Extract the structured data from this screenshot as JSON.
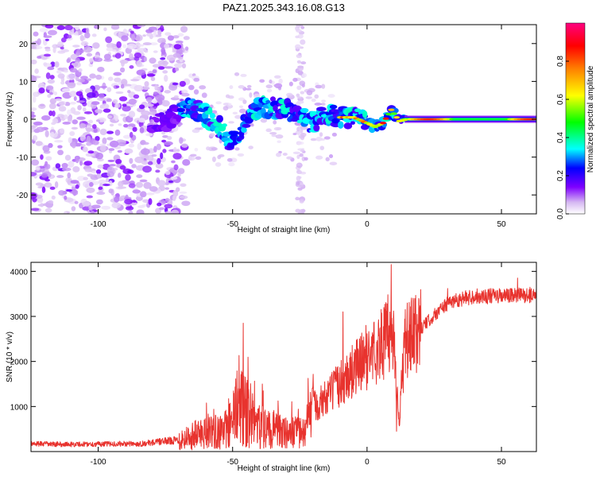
{
  "title": "PAZ1.2025.343.16.08.G13",
  "chart_data": [
    {
      "type": "heatmap",
      "xlabel": "Height of straight line (km)",
      "ylabel": "Frequency (Hz)",
      "xlim": [
        -125,
        63
      ],
      "ylim": [
        -25,
        25
      ],
      "xticks": [
        -100,
        -50,
        0,
        50
      ],
      "yticks": [
        -20,
        -10,
        0,
        10,
        20
      ],
      "colorbar": {
        "label": "Normalized spectral amplitude",
        "range": [
          0,
          1
        ],
        "ticks": [
          "0.0",
          "0.2",
          "0.4",
          "0.6",
          "0.8"
        ],
        "tick_values": [
          0.0,
          0.2,
          0.4,
          0.6,
          0.8
        ]
      },
      "ridge": [
        [
          -69,
          2.0
        ],
        [
          -65,
          3.5
        ],
        [
          -60,
          1.0
        ],
        [
          -55,
          -2.0
        ],
        [
          -50,
          -6.0
        ],
        [
          -45,
          -1.0
        ],
        [
          -40,
          3.5
        ],
        [
          -35,
          3.0
        ],
        [
          -30,
          2.5
        ],
        [
          -25,
          0.5
        ],
        [
          -20,
          -1.0
        ],
        [
          -15,
          1.5
        ],
        [
          -10,
          0.5
        ],
        [
          -5,
          0.5
        ],
        [
          0,
          -1.0
        ],
        [
          3,
          -2.0
        ],
        [
          6,
          -1.0
        ],
        [
          9,
          2.5
        ],
        [
          12,
          -0.5
        ],
        [
          15,
          0.0
        ],
        [
          20,
          0.0
        ],
        [
          30,
          0.0
        ],
        [
          40,
          0.0
        ],
        [
          50,
          0.0
        ],
        [
          63,
          0.0
        ]
      ]
    },
    {
      "type": "line",
      "xlabel": "Height of straight line (km)",
      "ylabel": "SNR (10 * v/v)",
      "xlim": [
        -125,
        63
      ],
      "ylim": [
        0,
        4200
      ],
      "xticks": [
        -100,
        -50,
        0,
        50
      ],
      "yticks": [
        1000,
        2000,
        3000,
        4000
      ],
      "series": [
        {
          "name": "SNR",
          "color": "#e8332e",
          "envelope": [
            [
              -125,
              170
            ],
            [
              -110,
              160
            ],
            [
              -95,
              170
            ],
            [
              -85,
              170
            ],
            [
              -75,
              230
            ],
            [
              -70,
              260
            ],
            [
              -65,
              350
            ],
            [
              -60,
              450
            ],
            [
              -55,
              420
            ],
            [
              -52,
              500
            ],
            [
              -48,
              900
            ],
            [
              -46,
              1000
            ],
            [
              -43,
              700
            ],
            [
              -38,
              500
            ],
            [
              -33,
              450
            ],
            [
              -28,
              400
            ],
            [
              -23,
              420
            ],
            [
              -20,
              1000
            ],
            [
              -15,
              1200
            ],
            [
              -10,
              1500
            ],
            [
              -5,
              1800
            ],
            [
              0,
              2100
            ],
            [
              5,
              2350
            ],
            [
              8,
              2600
            ],
            [
              10,
              2500
            ],
            [
              11,
              1500
            ],
            [
              12,
              700
            ],
            [
              14,
              2400
            ],
            [
              18,
              2600
            ],
            [
              22,
              2850
            ],
            [
              28,
              3200
            ],
            [
              32,
              3350
            ],
            [
              36,
              3400
            ],
            [
              40,
              3450
            ],
            [
              50,
              3450
            ],
            [
              63,
              3480
            ]
          ],
          "spikes": [
            [
              -46,
              2850
            ],
            [
              -9,
              3100
            ],
            [
              9,
              4150
            ],
            [
              11,
              450
            ],
            [
              30,
              3620
            ],
            [
              56,
              3850
            ]
          ]
        }
      ]
    }
  ]
}
